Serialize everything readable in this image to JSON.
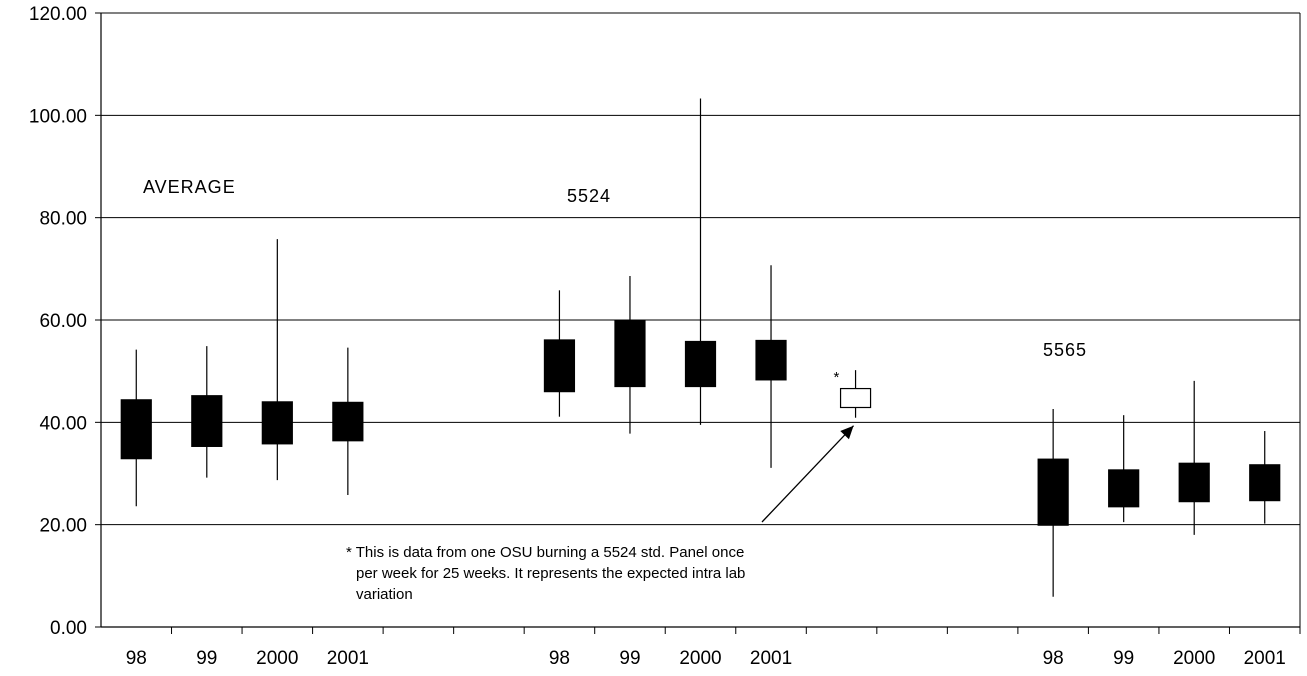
{
  "chart_data": {
    "type": "candlestick",
    "title": "",
    "xlabel": "",
    "ylabel": "",
    "ylim": [
      0,
      120
    ],
    "yticks": [
      "0.00",
      "20.00",
      "40.00",
      "60.00",
      "80.00",
      "100.00",
      "120.00"
    ],
    "grid": true,
    "groups": [
      {
        "label": "AVERAGE",
        "points": [
          {
            "x": "98",
            "high": 54.2,
            "low": 23.6,
            "open": 44.4,
            "close": 32.9
          },
          {
            "x": "99",
            "high": 54.9,
            "low": 29.2,
            "open": 45.2,
            "close": 35.3
          },
          {
            "x": "2000",
            "high": 75.8,
            "low": 28.7,
            "open": 44.0,
            "close": 35.8
          },
          {
            "x": "2001",
            "high": 54.6,
            "low": 25.8,
            "open": 43.9,
            "close": 36.4
          }
        ]
      },
      {
        "label": "5524",
        "points": [
          {
            "x": "98",
            "high": 65.8,
            "low": 41.1,
            "open": 56.1,
            "close": 46.0
          },
          {
            "x": "99",
            "high": 68.6,
            "low": 37.8,
            "open": 59.8,
            "close": 47.0
          },
          {
            "x": "2000",
            "high": 103.3,
            "low": 39.5,
            "open": 55.8,
            "close": 47.0
          },
          {
            "x": "2001",
            "high": 70.7,
            "low": 31.1,
            "open": 56.0,
            "close": 48.3
          }
        ]
      },
      {
        "label": "5565",
        "points": [
          {
            "x": "98",
            "high": 42.6,
            "low": 5.9,
            "open": 32.8,
            "close": 19.9
          },
          {
            "x": "99",
            "high": 41.4,
            "low": 20.5,
            "open": 30.7,
            "close": 23.5
          },
          {
            "x": "2000",
            "high": 48.1,
            "low": 18.0,
            "open": 32.0,
            "close": 24.5
          },
          {
            "x": "2001",
            "high": 38.3,
            "low": 20.2,
            "open": 31.7,
            "close": 24.7
          }
        ]
      }
    ],
    "special_point": {
      "marker": "*",
      "high": 50.2,
      "low": 40.9,
      "open": 46.6,
      "close": 42.9,
      "hollow": true
    },
    "annotation": {
      "lines": [
        "*  This is data from one OSU burning a 5524 std. Panel once",
        "per week for 25 weeks.  It represents the expected intra lab",
        "variation"
      ]
    }
  }
}
